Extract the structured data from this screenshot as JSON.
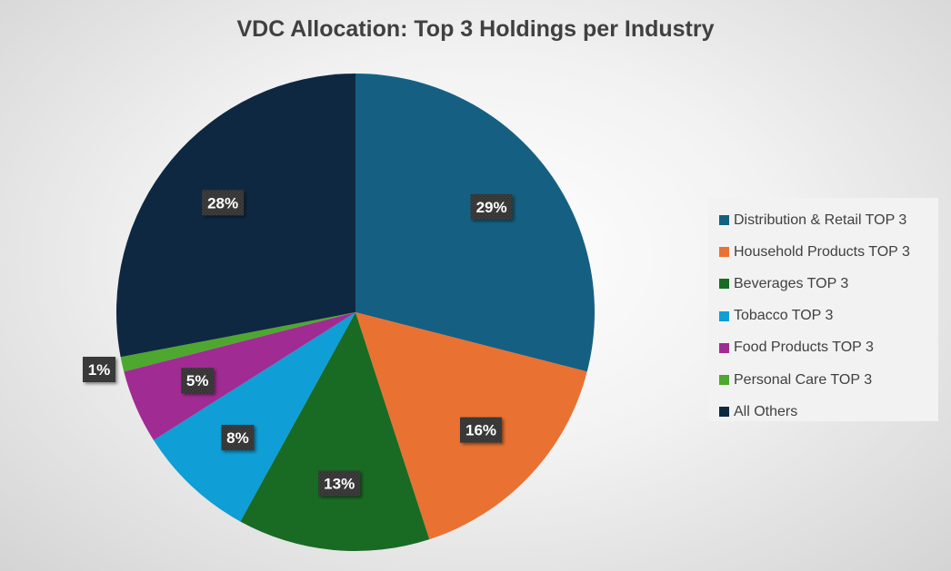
{
  "chart_data": {
    "type": "pie",
    "title": "VDC Allocation: Top 3 Holdings per Industry",
    "start_angle_deg": 0,
    "direction": "clockwise",
    "legend_position": "right",
    "slices": [
      {
        "name": "Distribution & Retail TOP 3",
        "value": 29,
        "label": "29%",
        "color": "#156082"
      },
      {
        "name": "Household Products TOP 3",
        "value": 16,
        "label": "16%",
        "color": "#E97132"
      },
      {
        "name": "Beverages TOP 3",
        "value": 13,
        "label": "13%",
        "color": "#196B24"
      },
      {
        "name": "Tobacco TOP 3",
        "value": 8,
        "label": "8%",
        "color": "#0F9ED5"
      },
      {
        "name": "Food Products TOP 3",
        "value": 5,
        "label": "5%",
        "color": "#A02B93"
      },
      {
        "name": "Personal Care TOP 3",
        "value": 1,
        "label": "1%",
        "color": "#4EA72E"
      },
      {
        "name": "All Others",
        "value": 28,
        "label": "28%",
        "color": "#0E2841"
      }
    ]
  }
}
